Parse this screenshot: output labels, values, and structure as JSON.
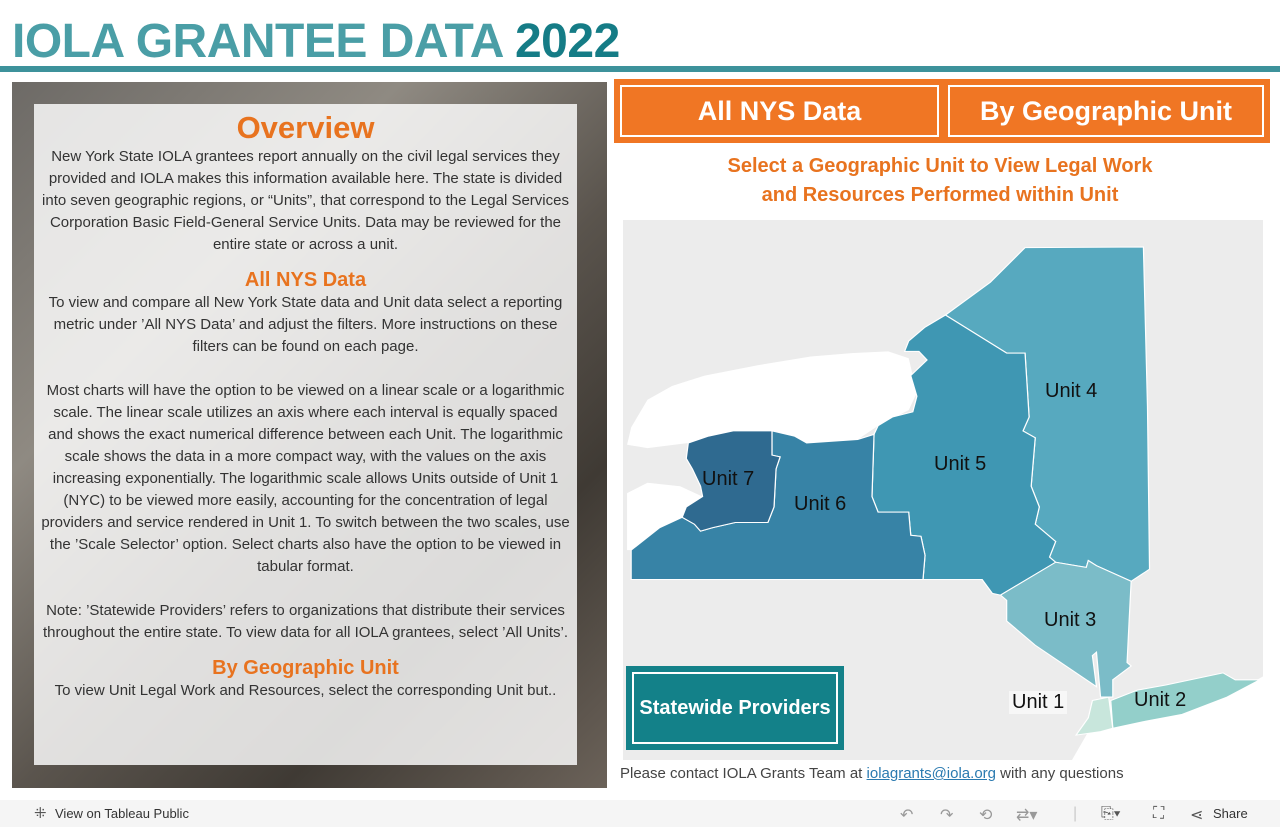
{
  "header": {
    "title": "IOLA GRANTEE DATA",
    "year": "2022"
  },
  "overview": {
    "title": "Overview",
    "intro": "New York State IOLA grantees report annually on the civil legal services they provided and IOLA makes this information available here. The state is divided into seven geographic regions, or “Units”, that correspond to the Legal Services Corporation Basic Field-General Service Units. Data may be reviewed for the entire state or across a unit.",
    "nys_heading": "All NYS Data",
    "nys_text": "To view and compare all New York State data and Unit data select a reporting metric under ’All NYS Data’ and adjust the filters. More instructions on these filters can be found on each page.",
    "scale_text": "Most charts will have the option to be viewed on a linear scale or a logarithmic scale. The linear scale utilizes an axis where each interval is equally spaced and shows the exact numerical difference between each Unit. The logarithmic scale shows the data in a more compact way, with the values on the axis increasing exponentially. The logarithmic scale allows Units outside of Unit 1 (NYC) to be viewed more easily, accounting for the concentration of legal providers and service rendered in Unit 1. To switch between the two scales, use the ’Scale Selector’ option. Select charts also have the option to be viewed in tabular format.",
    "note_text": "Note: ’Statewide Providers’ refers to organizations that distribute their services throughout the entire state. To view data for all IOLA grantees, select ’All Units’.",
    "geo_heading": "By Geographic Unit",
    "geo_text": "To view Unit Legal Work and Resources, select the corresponding Unit but.."
  },
  "nav": {
    "all_nys": "All NYS Data",
    "by_geo": "By Geographic Unit"
  },
  "map": {
    "subtitle_line1": "Select a Geographic Unit to View Legal Work",
    "subtitle_line2": "and Resources Performed within Unit",
    "units": [
      "Unit 1",
      "Unit 2",
      "Unit 3",
      "Unit 4",
      "Unit 5",
      "Unit 6",
      "Unit 7"
    ],
    "colors": {
      "unit1": "#c8e6dc",
      "unit2": "#93cfca",
      "unit3": "#7bbcc8",
      "unit4": "#57a9bf",
      "unit5": "#3f97b3",
      "unit6": "#3783a6",
      "unit7": "#2f6a90"
    },
    "statewide": "Statewide Providers"
  },
  "contact": {
    "prefix": "Please contact IOLA Grants Team at",
    "email": "iolagrants@iola.org",
    "suffix": "with any questions"
  },
  "footer": {
    "view_on": "View on Tableau Public",
    "share": "Share"
  }
}
